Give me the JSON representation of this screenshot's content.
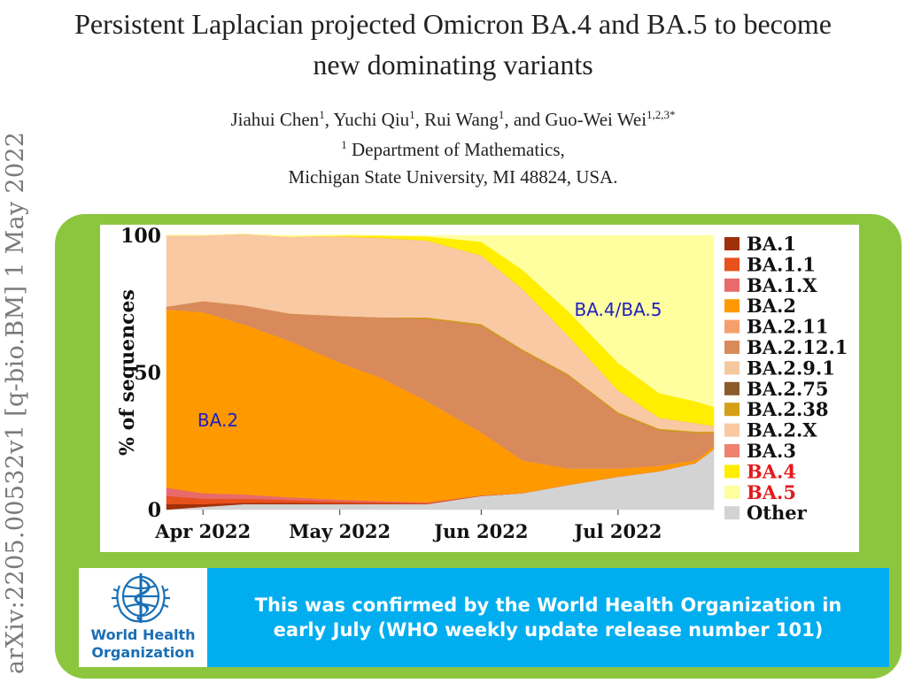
{
  "sidebar": {
    "arxiv_id": "arXiv:2205.00532v1  [q-bio.BM]  1 May 2022"
  },
  "paper": {
    "title_line1": "Persistent Laplacian projected Omicron BA.4 and BA.5 to become",
    "title_line2": "new dominating variants",
    "authors": [
      {
        "name": "Jiahui Chen",
        "sup": "1"
      },
      {
        "name": "Yuchi Qiu",
        "sup": "1"
      },
      {
        "name": "Rui Wang",
        "sup": "1"
      },
      {
        "name": "Guo-Wei Wei",
        "sup": "1,2,3*"
      }
    ],
    "author_sep": ", ",
    "author_and": ", and ",
    "affiliation_sup": "1",
    "affiliation_line1": "Department of Mathematics,",
    "affiliation_line2": "Michigan State University, MI 48824, USA."
  },
  "who": {
    "org_line1": "World Health",
    "org_line2": "Organization",
    "message": "This was confirmed by the World Health Organization in\nearly July  (WHO weekly update release number 101)"
  },
  "colors": {
    "panel_green": "#8cc63f",
    "banner_blue": "#00aeef",
    "who_blue": "#1a6fb5"
  },
  "chart_data": {
    "type": "area",
    "stacked": true,
    "ylabel": "% of sequences",
    "ylim": [
      0,
      100
    ],
    "yticks": [
      "0",
      "50",
      "100"
    ],
    "xticks": [
      "Apr 2022",
      "May 2022",
      "Jun 2022",
      "Jul 2022"
    ],
    "x": [
      "Mar 24",
      "Apr 1",
      "Apr 10",
      "Apr 20",
      "May 1",
      "May 10",
      "May 20",
      "Jun 1",
      "Jun 10",
      "Jun 20",
      "Jul 1",
      "Jul 10",
      "Jul 18",
      "Jul 22"
    ],
    "series": [
      {
        "name": "Other",
        "color": "#d3d3d3",
        "values": [
          0,
          1,
          2,
          2,
          2,
          2,
          2,
          5,
          6,
          9,
          12,
          14,
          17,
          22
        ]
      },
      {
        "name": "BA.1",
        "color": "#a0300a",
        "values": [
          2,
          1,
          0.5,
          0.5,
          0.3,
          0.2,
          0.1,
          0,
          0,
          0,
          0,
          0,
          0,
          0
        ]
      },
      {
        "name": "BA.1.1",
        "color": "#e8501c",
        "values": [
          3,
          2,
          1.5,
          1,
          0.7,
          0.5,
          0.3,
          0.1,
          0,
          0,
          0,
          0,
          0,
          0
        ]
      },
      {
        "name": "BA.1.X",
        "color": "#e86a6a",
        "values": [
          3,
          2,
          1.5,
          1,
          0.6,
          0.4,
          0.2,
          0.1,
          0,
          0,
          0,
          0,
          0,
          0
        ]
      },
      {
        "name": "BA.2",
        "color": "#ff9900",
        "values": [
          65,
          66,
          62,
          57,
          50,
          45,
          37,
          23,
          12,
          6,
          3,
          2,
          1,
          1
        ]
      },
      {
        "name": "BA.2.11",
        "color": "#f5a06a",
        "values": [
          0,
          0,
          0,
          0,
          0,
          0,
          0,
          0,
          0,
          0,
          0,
          0,
          0,
          0
        ]
      },
      {
        "name": "BA.2.12.1",
        "color": "#d98a5a",
        "values": [
          1,
          4,
          7,
          10,
          17,
          22,
          30,
          39,
          40,
          34,
          20,
          13,
          10,
          5
        ]
      },
      {
        "name": "BA.2.9.1",
        "color": "#f6c8a0",
        "values": [
          0,
          0,
          0,
          0,
          0,
          0,
          0,
          0,
          0,
          0,
          0,
          0,
          0,
          0
        ]
      },
      {
        "name": "BA.2.75",
        "color": "#8b5a2b",
        "values": [
          0,
          0,
          0,
          0,
          0,
          0,
          0,
          0,
          0,
          0,
          0,
          0,
          0,
          0
        ]
      },
      {
        "name": "BA.2.38",
        "color": "#d4a017",
        "values": [
          0,
          0,
          0,
          0,
          0,
          0,
          0.5,
          0.5,
          0.5,
          0.5,
          0.5,
          0.5,
          0.5,
          0.5
        ]
      },
      {
        "name": "BA.2.X",
        "color": "#f8c9a2",
        "values": [
          26,
          24,
          26,
          28,
          29,
          29,
          28,
          25,
          22,
          14,
          8,
          4,
          3,
          2
        ]
      },
      {
        "name": "BA.3",
        "color": "#f08070",
        "values": [
          0,
          0,
          0,
          0,
          0,
          0,
          0,
          0,
          0,
          0,
          0,
          0,
          0,
          0
        ]
      },
      {
        "name": "BA.4",
        "color": "#ffee00",
        "values": [
          0,
          0,
          0,
          0,
          0.3,
          0.8,
          1.5,
          5,
          7,
          9,
          10,
          9,
          8,
          7
        ]
      },
      {
        "name": "BA.5",
        "color": "#ffffa0",
        "values": [
          0,
          0,
          0,
          0.5,
          0.4,
          0.1,
          0.4,
          2.3,
          12.5,
          27.5,
          46.5,
          57.5,
          60.5,
          62.5
        ]
      }
    ],
    "annotations": [
      {
        "text": "BA.2",
        "color": "#2020c0"
      },
      {
        "text": "BA.4/BA.5",
        "color": "#2020c0"
      }
    ],
    "legend_placement": "right",
    "legend_highlight_color": "#e41a1c",
    "legend_highlight": [
      "BA.4",
      "BA.5"
    ]
  }
}
